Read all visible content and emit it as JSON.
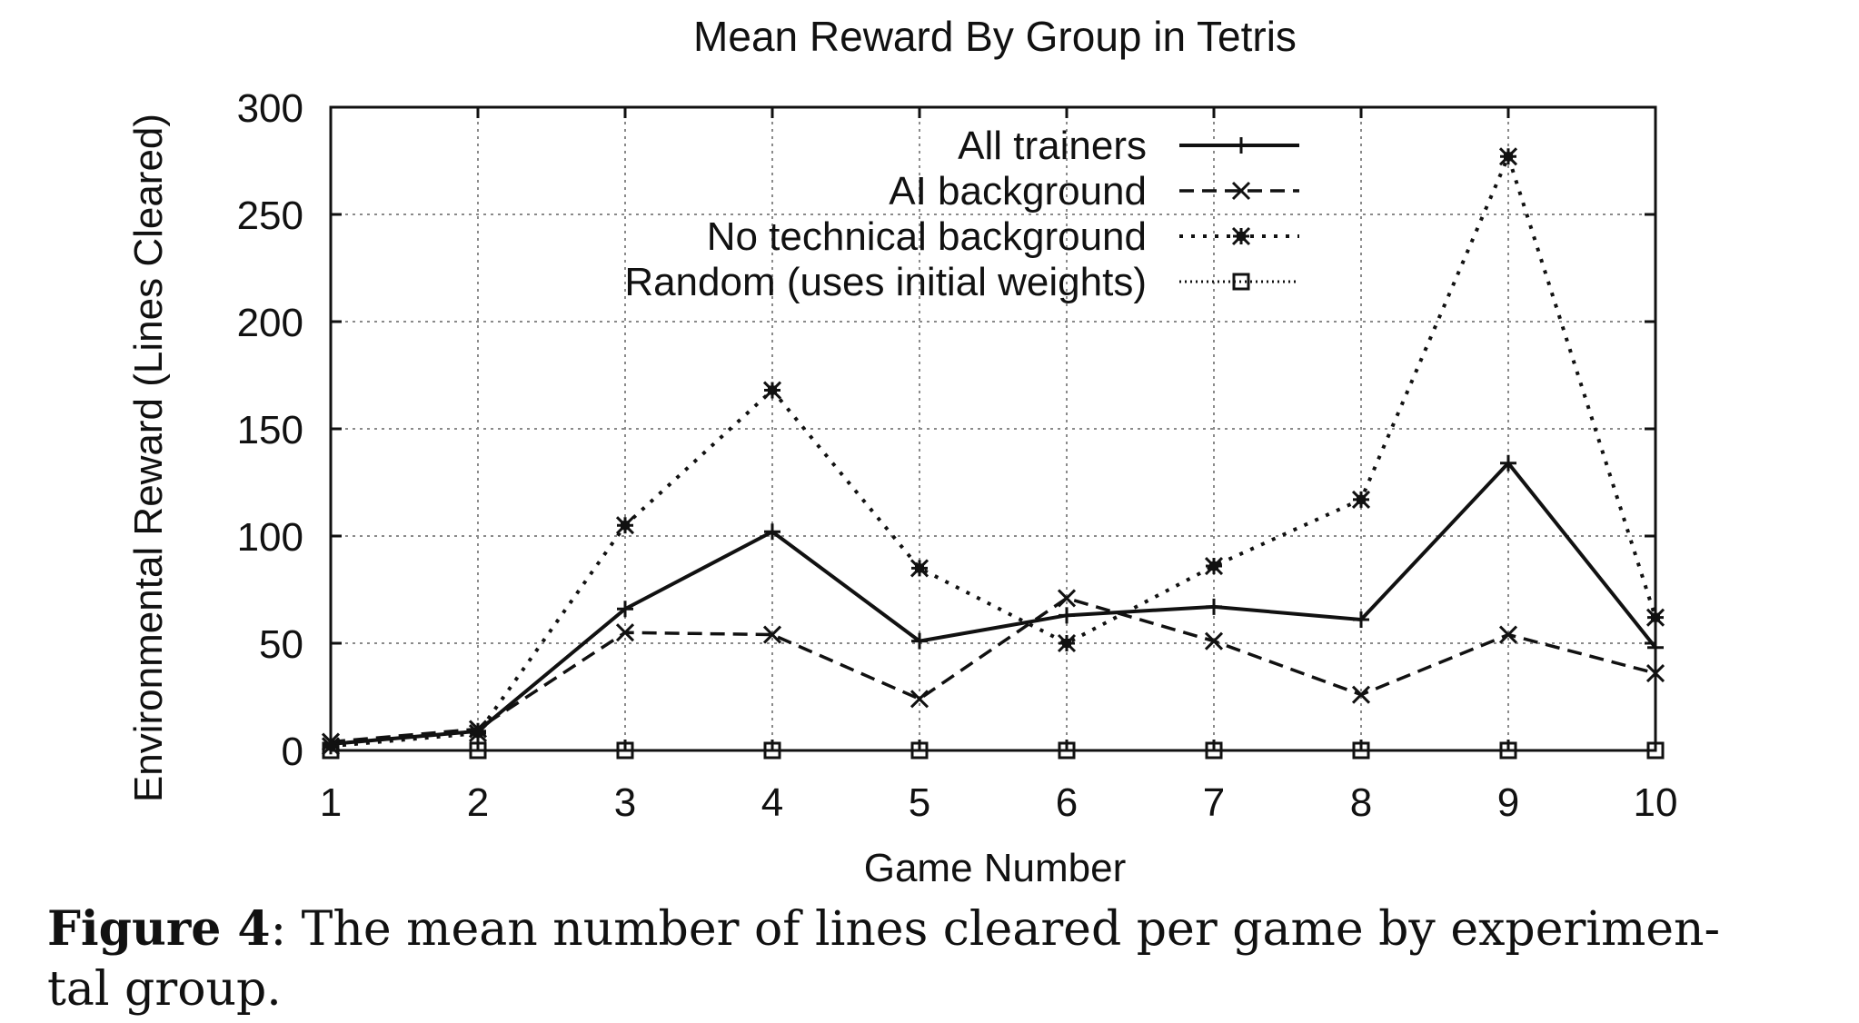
{
  "chart_data": {
    "type": "line",
    "title": "Mean Reward By Group in Tetris",
    "xlabel": "Game Number",
    "ylabel": "Environmental Reward (Lines Cleared)",
    "x": [
      1,
      2,
      3,
      4,
      5,
      6,
      7,
      8,
      9,
      10
    ],
    "xlim": [
      1,
      10
    ],
    "ylim": [
      0,
      300
    ],
    "xticks": [
      1,
      2,
      3,
      4,
      5,
      6,
      7,
      8,
      9,
      10
    ],
    "yticks": [
      0,
      50,
      100,
      150,
      200,
      250,
      300
    ],
    "grid": true,
    "legend_position": "top-right",
    "series": [
      {
        "name": "All trainers",
        "style": "solid",
        "marker": "plus",
        "values": [
          3,
          9,
          66,
          102,
          51,
          63,
          67,
          61,
          134,
          48
        ]
      },
      {
        "name": "AI background",
        "style": "dashed",
        "marker": "x",
        "values": [
          4,
          10,
          55,
          54,
          24,
          71,
          51,
          26,
          54,
          36
        ]
      },
      {
        "name": "No technical background",
        "style": "dotted",
        "marker": "star",
        "values": [
          2,
          8,
          105,
          168,
          85,
          50,
          86,
          117,
          277,
          62
        ]
      },
      {
        "name": "Random (uses initial weights)",
        "style": "fine-dotted",
        "marker": "square",
        "values": [
          0,
          0,
          0,
          0,
          0,
          0,
          0,
          0,
          0,
          0
        ]
      }
    ]
  },
  "caption": {
    "label": "Figure 4",
    "text": ": The mean number of lines cleared per game by experimen-\ntal group."
  }
}
